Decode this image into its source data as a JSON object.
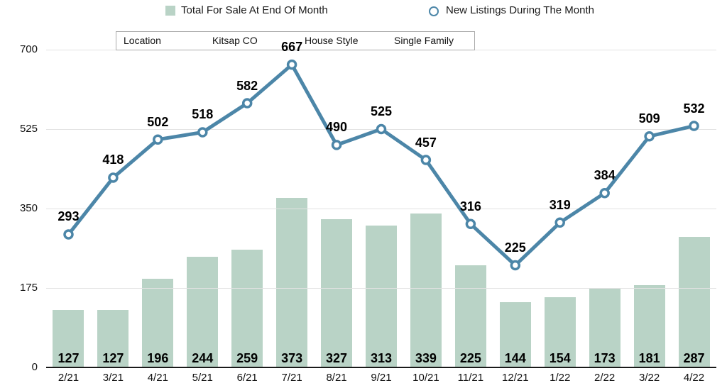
{
  "legend": {
    "bar_label": "Total For Sale At End Of Month",
    "line_label": "New Listings During The Month"
  },
  "filters": {
    "location_label": "Location",
    "location_value": "Kitsap CO",
    "style_label": "House Style",
    "style_value": "Single Family"
  },
  "colors": {
    "bar": "#b9d3c6",
    "line": "#4c86a8",
    "marker_fill": "#ffffff",
    "grid": "#e2e2e2",
    "axis": "#1a1a1a",
    "data_label": "#000000"
  },
  "chart_data": {
    "type": "combo",
    "categories": [
      "2/21",
      "3/21",
      "4/21",
      "5/21",
      "6/21",
      "7/21",
      "8/21",
      "9/21",
      "10/21",
      "11/21",
      "12/21",
      "1/22",
      "2/22",
      "3/22",
      "4/22"
    ],
    "series": [
      {
        "name": "Total For Sale At End Of Month",
        "type": "bar",
        "values": [
          127,
          127,
          196,
          244,
          259,
          373,
          327,
          313,
          339,
          225,
          144,
          154,
          173,
          181,
          287
        ]
      },
      {
        "name": "New Listings During The Month",
        "type": "line",
        "values": [
          293,
          418,
          502,
          518,
          582,
          667,
          490,
          525,
          457,
          316,
          225,
          319,
          384,
          509,
          532
        ]
      }
    ],
    "title": "",
    "xlabel": "",
    "ylabel": "",
    "ylim": [
      0,
      700
    ],
    "yticks": [
      0,
      175,
      350,
      525,
      700
    ],
    "grid": true,
    "legend_position": "top"
  }
}
